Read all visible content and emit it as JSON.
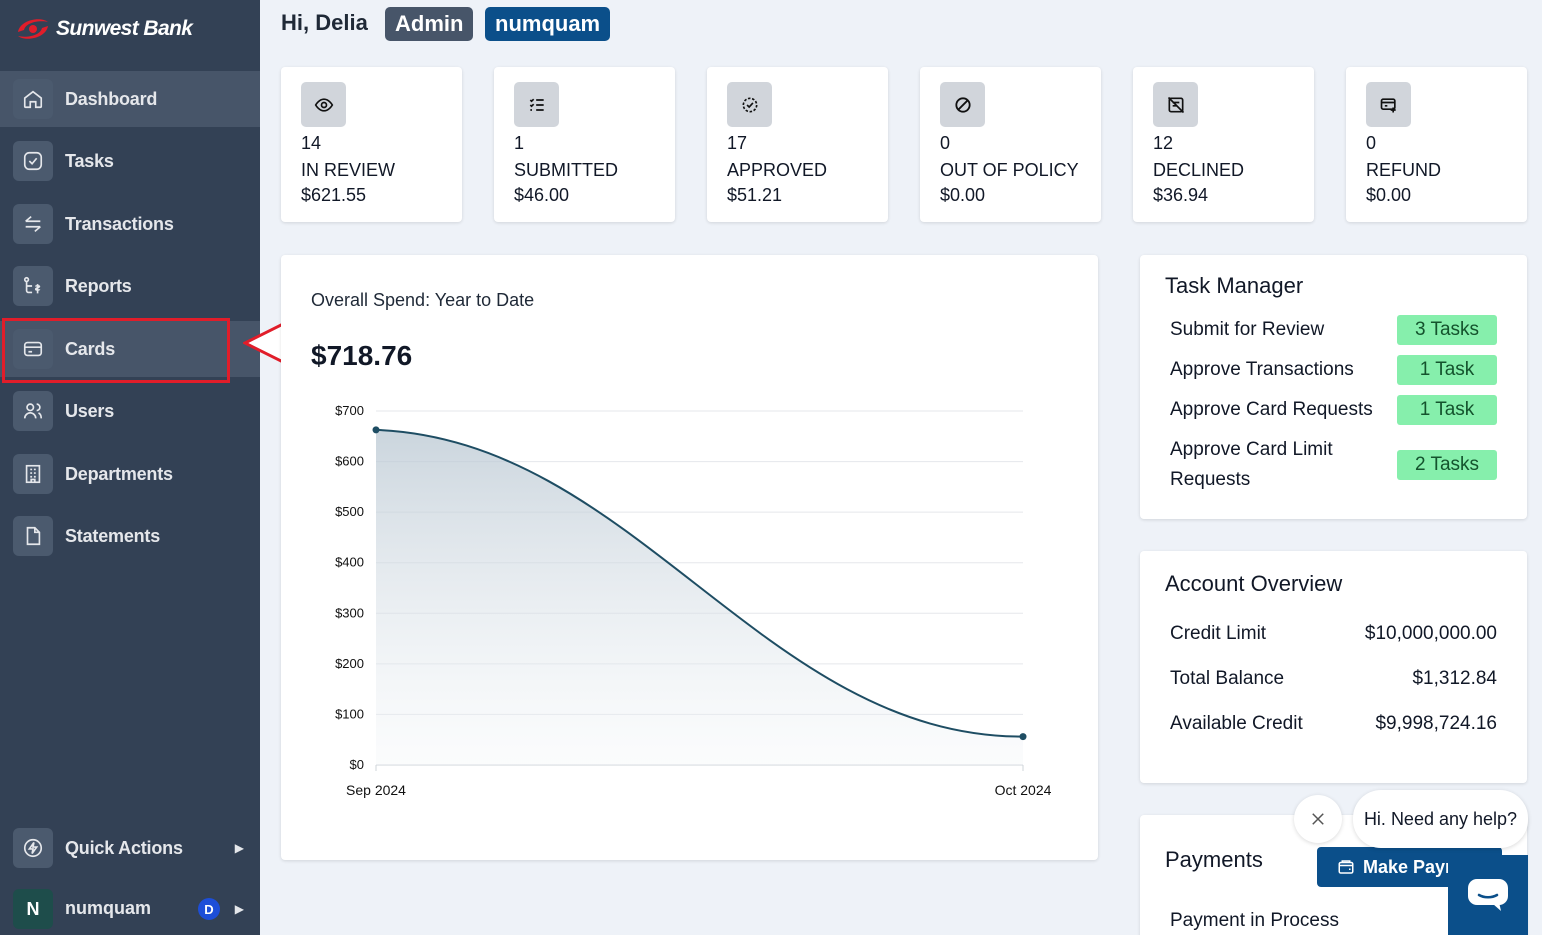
{
  "brand": {
    "name": "Sunwest Bank"
  },
  "sidebar": {
    "items": [
      {
        "label": "Dashboard",
        "icon": "home-icon"
      },
      {
        "label": "Tasks",
        "icon": "check-circle-icon"
      },
      {
        "label": "Transactions",
        "icon": "swap-icon"
      },
      {
        "label": "Reports",
        "icon": "report-icon"
      },
      {
        "label": "Cards",
        "icon": "card-icon"
      },
      {
        "label": "Users",
        "icon": "users-icon"
      },
      {
        "label": "Departments",
        "icon": "building-icon"
      },
      {
        "label": "Statements",
        "icon": "document-icon"
      }
    ],
    "quick_actions": "Quick Actions",
    "user": {
      "initial": "N",
      "name": "numquam",
      "badge": "D"
    }
  },
  "header": {
    "greeting": "Hi, Delia",
    "role": "Admin",
    "org": "numquam"
  },
  "stats": [
    {
      "count": "14",
      "label": "IN REVIEW",
      "amount": "$621.55",
      "icon": "eye-icon"
    },
    {
      "count": "1",
      "label": "SUBMITTED",
      "amount": "$46.00",
      "icon": "checklist-icon"
    },
    {
      "count": "17",
      "label": "APPROVED",
      "amount": "$51.21",
      "icon": "badge-check-icon"
    },
    {
      "count": "0",
      "label": "OUT OF POLICY",
      "amount": "$0.00",
      "icon": "ban-icon"
    },
    {
      "count": "12",
      "label": "DECLINED",
      "amount": "$36.94",
      "icon": "declined-icon"
    },
    {
      "count": "0",
      "label": "REFUND",
      "amount": "$0.00",
      "icon": "refund-icon"
    }
  ],
  "spend": {
    "title": "Overall Spend: Year to Date",
    "total": "$718.76"
  },
  "chart_data": {
    "type": "area",
    "categories": [
      "Sep 2024",
      "Oct 2024"
    ],
    "values": [
      662.63,
      56.13
    ],
    "ylim": [
      0,
      700
    ],
    "yticks": [
      "$0",
      "$100",
      "$200",
      "$300",
      "$400",
      "$500",
      "$600",
      "$700"
    ],
    "grid": true,
    "color": "#1e4d63"
  },
  "task_manager": {
    "title": "Task Manager",
    "tasks": [
      {
        "label": "Submit for Review",
        "count": "3 Tasks"
      },
      {
        "label": "Approve Transactions",
        "count": "1 Task"
      },
      {
        "label": "Approve Card Requests",
        "count": "1 Task"
      },
      {
        "label": "Approve Card Limit Requests",
        "count": "2 Tasks"
      }
    ]
  },
  "account": {
    "title": "Account Overview",
    "rows": [
      {
        "label": "Credit Limit",
        "value": "$10,000,000.00"
      },
      {
        "label": "Total Balance",
        "value": "$1,312.84"
      },
      {
        "label": "Available Credit",
        "value": "$9,998,724.16"
      }
    ]
  },
  "payments": {
    "title": "Payments",
    "button": "Make Payment",
    "status": "Payment in Process"
  },
  "help": {
    "message": "Hi. Need any help?"
  },
  "colors": {
    "sidebar": "#334155",
    "accent": "#0b4f8a",
    "pill": "#86efac",
    "highlight": "#e11d2a"
  }
}
